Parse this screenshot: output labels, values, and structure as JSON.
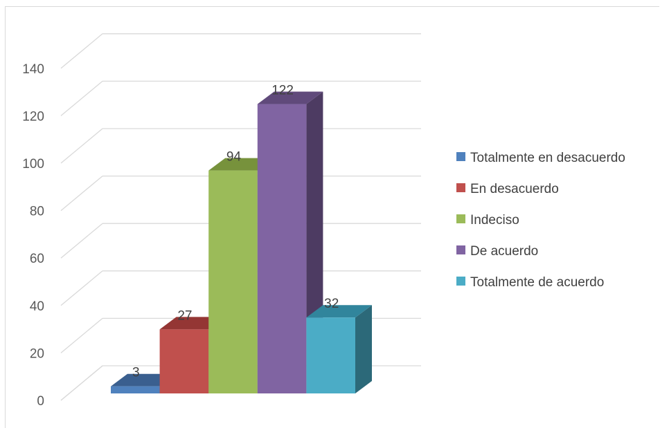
{
  "chart_data": {
    "type": "bar",
    "style": "3d-clustered-column",
    "categories": [
      "Totalmente en desacuerdo",
      "En desacuerdo",
      "Indeciso",
      "De acuerdo",
      "Totalmente de acuerdo"
    ],
    "values": [
      3,
      27,
      94,
      122,
      32
    ],
    "data_labels": [
      "3",
      "27",
      "94",
      "122",
      "32"
    ],
    "colors": [
      "#4f81bd",
      "#c0504d",
      "#9bbb59",
      "#8064a2",
      "#4bacc6"
    ],
    "side_colors": [
      "#2c4d75",
      "#772c2a",
      "#5f7530",
      "#4d3b62",
      "#2c6979"
    ],
    "top_colors": [
      "#3a5f8f",
      "#943634",
      "#77923c",
      "#604a7b",
      "#31859c"
    ],
    "ylim": [
      0,
      140
    ],
    "yticks": [
      "0",
      "20",
      "40",
      "60",
      "80",
      "100",
      "120",
      "140"
    ],
    "grid": true,
    "legend_position": "right",
    "legend": [
      "Totalmente en desacuerdo",
      "En desacuerdo",
      "Indeciso",
      "De acuerdo",
      "Totalmente de acuerdo"
    ],
    "title": "",
    "xlabel": "",
    "ylabel": ""
  }
}
